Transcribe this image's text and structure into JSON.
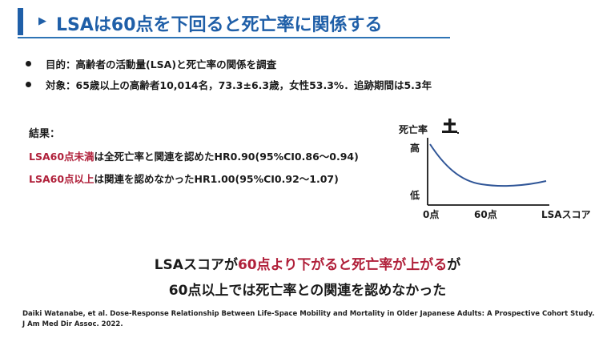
{
  "title": "LSAは60点を下回ると死亡率に関係する",
  "bullets": [
    "目的：高齢者の活動量(LSA)と死亡率の関係を調査",
    "対象：65歳以上の高齢者10,014名，73.3±6.3歳，女性53.3%．追跡期間は5.3年"
  ],
  "results": {
    "heading": "結果：",
    "line1_highlight": "LSA60点未満",
    "line1_rest": "は全死亡率と関連を認めたHR0.90(95%CI0.86～0.94)",
    "line2_highlight": "LSA60点以上",
    "line2_rest": "は関連を認めなかったHR1.00(95%CI0.92～1.07)"
  },
  "diagram": {
    "y_title": "死亡率",
    "y_high": "高",
    "y_low": "低",
    "x_ticks": [
      "0点",
      "60点"
    ],
    "x_label": "LSAスコア",
    "icon": "grave-cross-icon",
    "curve_color": "#2f5597"
  },
  "conclusion": {
    "line1_a": "LSAスコアが",
    "line1_b": "60点より下がると死亡率が上がる",
    "line1_c": "が",
    "line2": "60点以上では死亡率との関連を認めなかった"
  },
  "citation": {
    "line1": "Daiki Watanabe, et al. Dose-Response Relationship Between Life-Space Mobility and Mortality in Older Japanese Adults: A Prospective Cohort Study.",
    "line2": "J Am Med Dir Assoc. 2022."
  },
  "colors": {
    "accent": "#1f5fa8",
    "highlight": "#b0203a"
  }
}
